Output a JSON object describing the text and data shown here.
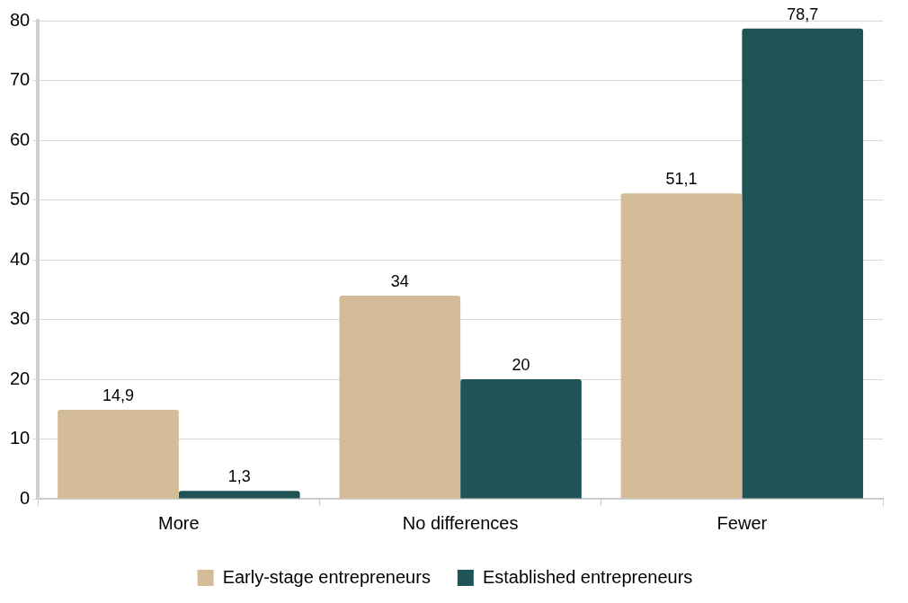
{
  "chart_data": {
    "type": "bar",
    "categories": [
      "More",
      "No differences",
      "Fewer"
    ],
    "series": [
      {
        "name": "Early-stage entrepreneurs",
        "color": "#d4bc98",
        "values": [
          14.9,
          34,
          51.1
        ],
        "value_labels": [
          "14,9",
          "34",
          "51,1"
        ]
      },
      {
        "name": "Established entrepreneurs",
        "color": "#1f5457",
        "values": [
          1.3,
          20,
          78.7
        ],
        "value_labels": [
          "1,3",
          "20",
          "78,7"
        ]
      }
    ],
    "ylim": [
      0,
      80
    ],
    "yticks": [
      0,
      10,
      20,
      30,
      40,
      50,
      60,
      70,
      80
    ],
    "grid": "y",
    "legend": "bottom"
  }
}
